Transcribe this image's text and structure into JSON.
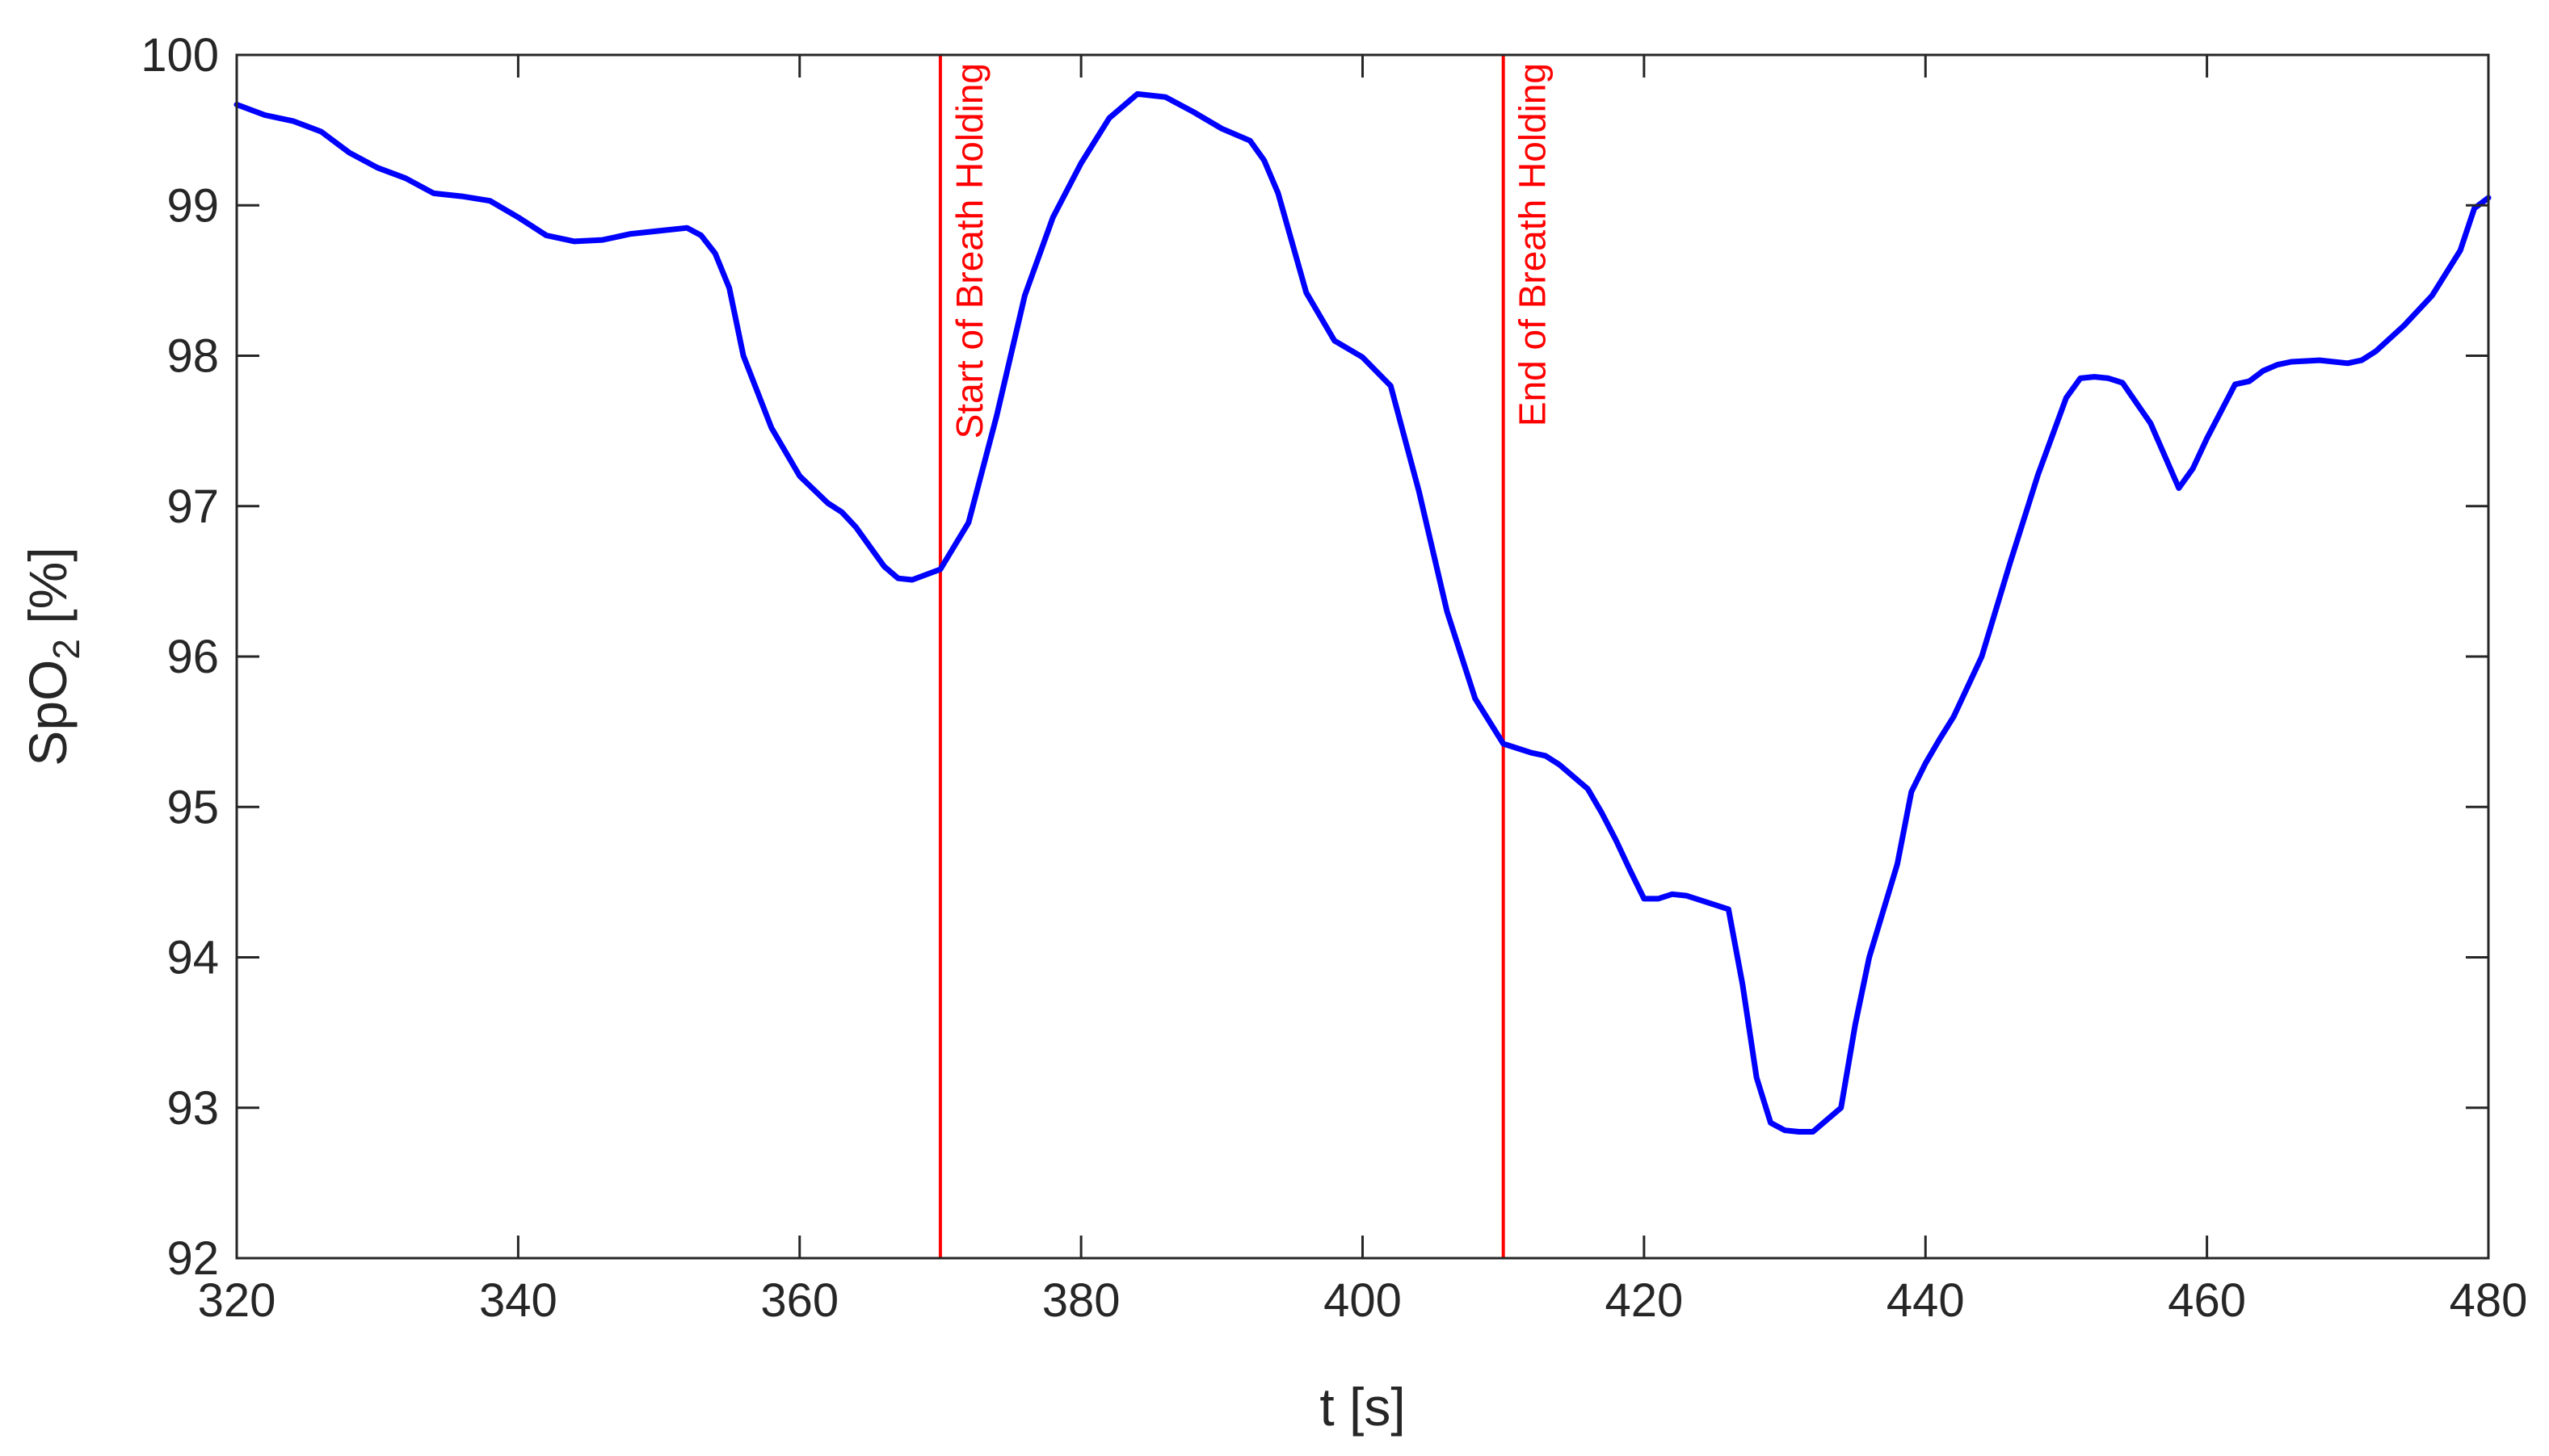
{
  "chart_data": {
    "type": "line",
    "title": "",
    "xlabel": "t [s]",
    "ylabel": {
      "main": "SpO",
      "subscript": "2",
      "unit": " [%]"
    },
    "xlim": [
      320,
      480
    ],
    "ylim": [
      92,
      100
    ],
    "xticks": [
      320,
      340,
      360,
      380,
      400,
      420,
      440,
      460,
      480
    ],
    "yticks": [
      92,
      93,
      94,
      95,
      96,
      97,
      98,
      99,
      100
    ],
    "grid": false,
    "colors": {
      "series": "#0000ff",
      "annotation": "#ff0000",
      "axis": "#262626"
    },
    "series": [
      {
        "x": [
          320,
          322,
          324,
          326,
          328,
          330,
          332,
          334,
          336,
          338,
          340,
          342,
          344,
          346,
          348,
          350,
          352,
          353,
          354,
          355,
          356,
          358,
          360,
          362,
          363,
          364,
          366,
          367,
          368,
          370,
          372,
          374,
          376,
          378,
          380,
          382,
          384,
          386,
          388,
          390,
          392,
          393,
          394,
          396,
          398,
          400,
          402,
          404,
          406,
          408,
          410,
          412,
          413,
          414,
          416,
          417,
          418,
          419,
          420,
          421,
          422,
          423,
          424,
          426,
          427,
          428,
          429,
          430,
          431,
          432,
          434,
          435,
          436,
          438,
          439,
          440,
          441,
          442,
          444,
          446,
          448,
          450,
          451,
          452,
          453,
          454,
          456,
          458,
          459,
          460,
          462,
          463,
          464,
          465,
          466,
          468,
          470,
          471,
          472,
          474,
          476,
          478,
          479,
          480
        ],
        "values": [
          99.67,
          99.6,
          99.56,
          99.49,
          99.35,
          99.25,
          99.18,
          99.08,
          99.06,
          99.03,
          98.92,
          98.8,
          98.76,
          98.77,
          98.81,
          98.83,
          98.85,
          98.8,
          98.68,
          98.45,
          98.0,
          97.52,
          97.2,
          97.02,
          96.96,
          96.86,
          96.6,
          96.52,
          96.51,
          96.58,
          96.89,
          97.6,
          98.4,
          98.92,
          99.28,
          99.58,
          99.74,
          99.72,
          99.62,
          99.51,
          99.43,
          99.3,
          99.08,
          98.42,
          98.1,
          97.99,
          97.8,
          97.1,
          96.3,
          95.72,
          95.42,
          95.36,
          95.34,
          95.28,
          95.12,
          94.96,
          94.78,
          94.58,
          94.39,
          94.39,
          94.42,
          94.41,
          94.38,
          94.32,
          93.82,
          93.2,
          92.9,
          92.85,
          92.84,
          92.84,
          93.0,
          93.55,
          94.0,
          94.62,
          95.1,
          95.29,
          95.45,
          95.6,
          96.0,
          96.62,
          97.21,
          97.72,
          97.85,
          97.86,
          97.85,
          97.82,
          97.55,
          97.12,
          97.25,
          97.45,
          97.81,
          97.83,
          97.9,
          97.94,
          97.96,
          97.97,
          97.95,
          97.97,
          98.03,
          98.2,
          98.4,
          98.7,
          98.98,
          99.05
        ]
      }
    ],
    "annotations": [
      {
        "x": 370,
        "label": "Start of Breath Holding"
      },
      {
        "x": 410,
        "label": "End of Breath Holding"
      }
    ]
  }
}
